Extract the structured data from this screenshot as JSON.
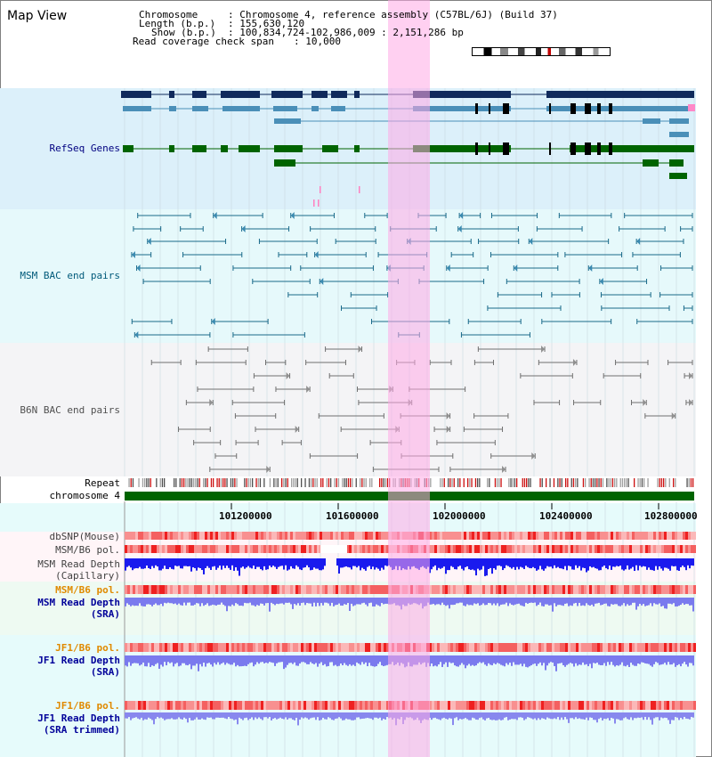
{
  "app": {
    "title": "Map View"
  },
  "header": {
    "chromosome_label": "Chromosome",
    "chromosome_value": ": Chromosome 4, reference assembly (C57BL/6J) (Build 37)",
    "length_label": "Length (b.p.)",
    "length_value": ": 155,630,120",
    "show_label": "Show (b.p.)",
    "show_value": ": 100,834,724-102,986,009 : 2,151,286 bp",
    "coverage_label": "Read coverage check span",
    "coverage_value": ": 10,000"
  },
  "tracks": {
    "refseq": "RefSeq Genes",
    "msm_bac": "MSM BAC end pairs",
    "b6n_bac": "B6N BAC end pairs",
    "repeat": "Repeat",
    "chromosome": "chromosome 4",
    "dbsnp": "dbSNP(Mouse)",
    "msm_b6_pol_1": "MSM/B6 pol.",
    "msm_read_depth_cap_1": "MSM Read Depth",
    "msm_read_depth_cap_2": "(Capillary)",
    "msm_b6_pol_2": "MSM/B6 pol.",
    "msm_read_depth_sra_1": "MSM Read Depth",
    "msm_read_depth_sra_2": "(SRA)",
    "jf1_b6_pol_1": "JF1/B6 pol.",
    "jf1_read_depth_sra_1": "JF1 Read Depth",
    "jf1_read_depth_sra_2": "(SRA)",
    "jf1_b6_pol_2": "JF1/B6 pol.",
    "jf1_read_depth_trim_1": "JF1 Read Depth",
    "jf1_read_depth_trim_2": "(SRA trimmed)"
  },
  "axis": {
    "ticks": [
      "101200000",
      "101600000",
      "102000000",
      "102400000",
      "102800000"
    ]
  },
  "colors": {
    "refseq_label": "#000080",
    "msm_bac_label": "#005a7a",
    "b6n_bac_label": "#505050",
    "pol_label": "#e08a00",
    "depth_label": "#000099",
    "highlight": "#ffaae6",
    "chromosome_bar": "#006400"
  }
}
